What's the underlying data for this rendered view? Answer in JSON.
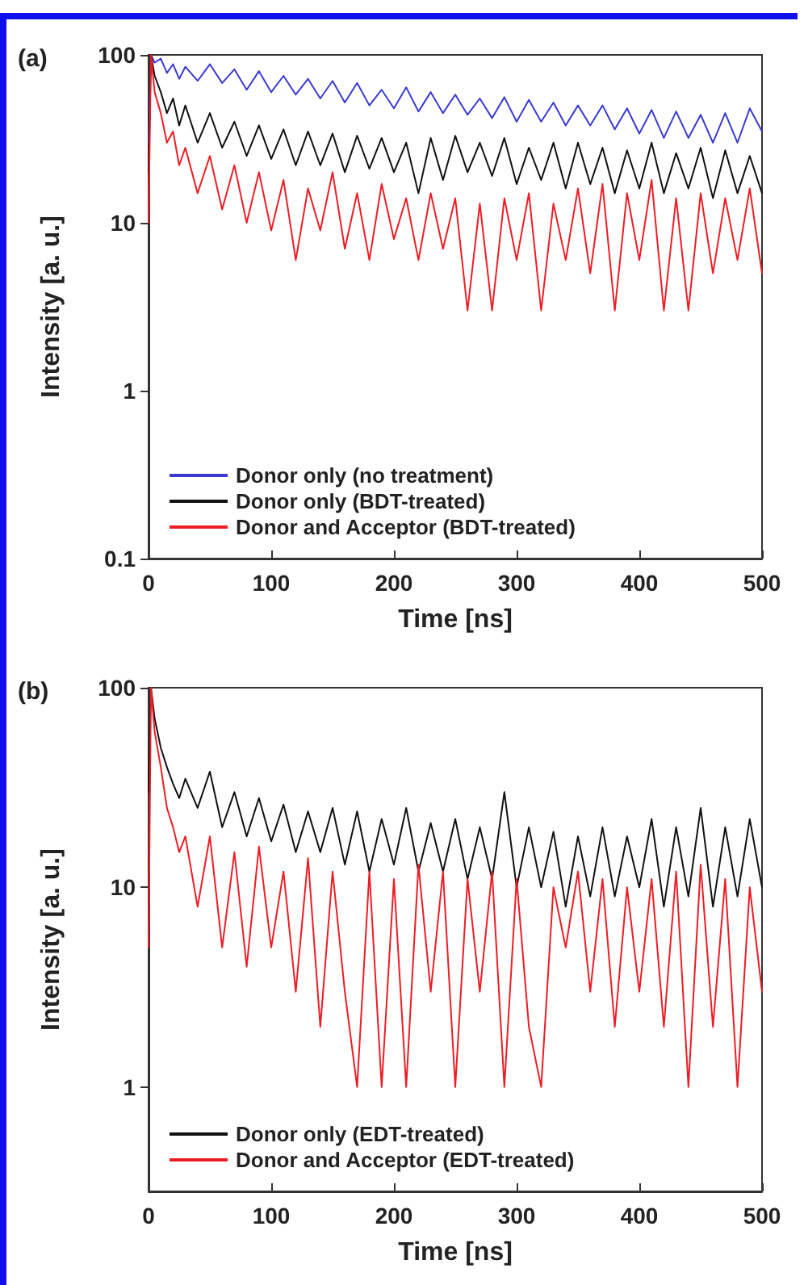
{
  "chart_data": [
    {
      "type": "line",
      "title": "(a)",
      "xlabel": "Time [ns]",
      "ylabel": "Intensity [a. u.]",
      "log": true,
      "legend": "bottom left",
      "marker": "none",
      "line_style": "solid",
      "grid": false,
      "x": [
        0,
        2,
        5,
        10,
        15,
        20,
        25,
        30,
        40,
        50,
        60,
        70,
        80,
        90,
        100,
        110,
        120,
        130,
        140,
        150,
        160,
        170,
        180,
        190,
        200,
        210,
        220,
        230,
        240,
        250,
        260,
        270,
        280,
        290,
        300,
        310,
        320,
        330,
        340,
        350,
        360,
        370,
        380,
        390,
        400,
        410,
        420,
        430,
        440,
        450,
        460,
        470,
        480,
        490,
        500
      ],
      "xlim": [
        0,
        500
      ],
      "xticks": [
        0,
        100,
        200,
        300,
        400,
        500
      ],
      "ylim": [
        0.1,
        100
      ],
      "yticks": [
        0.1,
        1,
        10,
        100
      ],
      "series": [
        {
          "name": "Donor only (no treatment)",
          "color": "#3a3ad0",
          "values": [
            30,
            100,
            90,
            95,
            78,
            88,
            72,
            85,
            70,
            88,
            68,
            82,
            62,
            80,
            60,
            75,
            58,
            72,
            55,
            70,
            52,
            68,
            50,
            62,
            48,
            64,
            46,
            60,
            45,
            58,
            44,
            55,
            42,
            56,
            40,
            54,
            40,
            52,
            38,
            50,
            38,
            50,
            36,
            48,
            34,
            47,
            32,
            46,
            32,
            44,
            30,
            45,
            30,
            48,
            35
          ]
        },
        {
          "name": "Donor only (BDT-treated)",
          "color": "#111111",
          "values": [
            20,
            100,
            75,
            60,
            45,
            55,
            38,
            50,
            30,
            45,
            28,
            40,
            25,
            38,
            24,
            36,
            22,
            35,
            22,
            34,
            20,
            33,
            21,
            32,
            20,
            30,
            15,
            32,
            18,
            33,
            20,
            30,
            19,
            32,
            17,
            28,
            18,
            30,
            16,
            30,
            17,
            28,
            15,
            27,
            16,
            30,
            15,
            26,
            16,
            28,
            14,
            27,
            15,
            25,
            15
          ]
        },
        {
          "name": "Donor and Acceptor (BDT-treated)",
          "color": "#ee1c25",
          "values": [
            10,
            100,
            60,
            45,
            30,
            35,
            22,
            28,
            15,
            25,
            12,
            22,
            10,
            20,
            9,
            18,
            6,
            16,
            9,
            20,
            7,
            15,
            6,
            17,
            8,
            14,
            6,
            15,
            7,
            14,
            3,
            13,
            3,
            14,
            6,
            15,
            3,
            13,
            6,
            16,
            5,
            17,
            3,
            15,
            6,
            18,
            3,
            14,
            3,
            15,
            5,
            14,
            6,
            16,
            5
          ]
        }
      ]
    },
    {
      "type": "line",
      "title": "(b)",
      "xlabel": "Time [ns]",
      "ylabel": "Intensity [a. u.]",
      "log": true,
      "legend": "bottom left",
      "marker": "none",
      "line_style": "solid",
      "grid": false,
      "x": [
        0,
        2,
        5,
        10,
        15,
        20,
        25,
        30,
        40,
        50,
        60,
        70,
        80,
        90,
        100,
        110,
        120,
        130,
        140,
        150,
        160,
        170,
        180,
        190,
        200,
        210,
        220,
        230,
        240,
        250,
        260,
        270,
        280,
        290,
        300,
        310,
        320,
        330,
        340,
        350,
        360,
        370,
        380,
        390,
        400,
        410,
        420,
        430,
        440,
        450,
        460,
        470,
        480,
        490,
        500
      ],
      "xlim": [
        0,
        500
      ],
      "xticks": [
        0,
        100,
        200,
        300,
        400,
        500
      ],
      "ylim": [
        0.3,
        100
      ],
      "yticks": [
        1,
        10,
        100
      ],
      "series": [
        {
          "name": "Donor only (EDT-treated)",
          "color": "#111111",
          "values": [
            30,
            100,
            70,
            50,
            40,
            33,
            28,
            35,
            25,
            38,
            20,
            30,
            18,
            28,
            17,
            26,
            15,
            24,
            15,
            25,
            13,
            24,
            12,
            22,
            13,
            25,
            12,
            21,
            12,
            22,
            11,
            20,
            11,
            30,
            10,
            20,
            10,
            19,
            8,
            18,
            9,
            20,
            9,
            18,
            10,
            22,
            8,
            20,
            9,
            25,
            8,
            20,
            9,
            22,
            10
          ]
        },
        {
          "name": "Donor and Acceptor (EDT-treated)",
          "color": "#ee1c25",
          "values": [
            5,
            100,
            60,
            40,
            25,
            20,
            15,
            18,
            8,
            18,
            5,
            15,
            4,
            16,
            5,
            12,
            3,
            14,
            2,
            12,
            3,
            1,
            12,
            1,
            11,
            1,
            13,
            3,
            12,
            1,
            11,
            3,
            12,
            1,
            11,
            2,
            1,
            10,
            5,
            12,
            3,
            11,
            2,
            10,
            3,
            11,
            2,
            12,
            1,
            13,
            2,
            11,
            1,
            10,
            3
          ]
        }
      ]
    }
  ]
}
